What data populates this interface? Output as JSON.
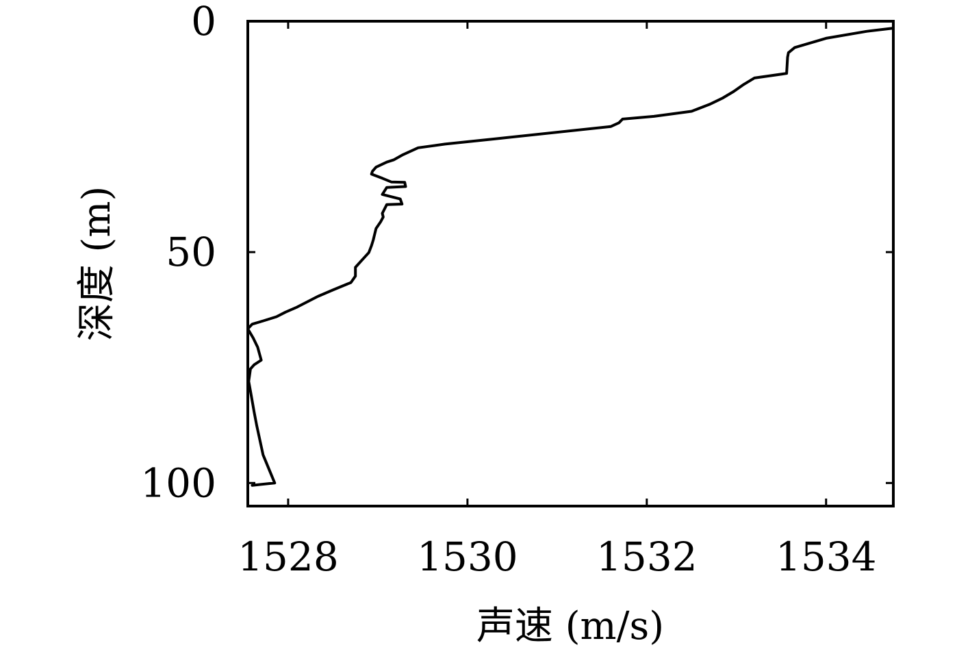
{
  "chart_data": {
    "type": "line",
    "title": "",
    "xlabel": "声速 (m/s)",
    "ylabel": "深度 (m)",
    "xlim": [
      1527.55,
      1534.75
    ],
    "ylim": [
      0,
      105
    ],
    "y_inverted": true,
    "x_ticks": [
      1528,
      1530,
      1532,
      1534
    ],
    "x_tick_labels": [
      "1528",
      "1530",
      "1532",
      "1534"
    ],
    "y_ticks": [
      0,
      50,
      100
    ],
    "y_tick_labels": [
      "0",
      "50",
      "100"
    ],
    "grid": false,
    "legend": "none",
    "line_color": "#000000",
    "series": [
      {
        "x": [
          1534.75,
          1534.45,
          1534.0,
          1533.65,
          1533.58,
          1533.57,
          1533.56,
          1533.2,
          1533.08,
          1532.97,
          1532.85,
          1532.7,
          1532.5,
          1532.08,
          1531.73,
          1531.69,
          1531.6,
          1530.3,
          1529.75,
          1529.45,
          1529.28,
          1529.18,
          1529.1,
          1528.98,
          1528.94,
          1528.93,
          1529.05,
          1529.15,
          1529.3,
          1529.31,
          1529.1,
          1529.05,
          1529.25,
          1529.27,
          1529.1,
          1529.05,
          1529.06,
          1529.03,
          1528.98,
          1528.95,
          1528.93,
          1528.9,
          1528.82,
          1528.75,
          1528.75,
          1528.7,
          1528.5,
          1528.33,
          1528.1,
          1527.97,
          1527.87,
          1527.72,
          1527.6,
          1527.55,
          1527.61,
          1527.66,
          1527.7,
          1527.62,
          1527.58,
          1527.56,
          1527.58,
          1527.62,
          1527.65,
          1527.72,
          1527.85,
          1527.6
        ],
        "y": [
          1.5,
          2.2,
          3.7,
          5.7,
          6.8,
          7.8,
          11.3,
          12.3,
          13.7,
          15.2,
          16.6,
          18.0,
          19.5,
          20.6,
          21.2,
          22.0,
          22.8,
          25.5,
          26.6,
          27.4,
          28.9,
          30.0,
          30.5,
          31.6,
          32.5,
          33.1,
          34.0,
          34.8,
          34.9,
          35.8,
          36.0,
          37.5,
          38.5,
          39.6,
          39.7,
          41.6,
          42.4,
          43.5,
          44.9,
          47.3,
          48.6,
          50.1,
          51.8,
          53.3,
          55.2,
          56.6,
          58.2,
          59.6,
          61.9,
          63.0,
          64.0,
          64.9,
          65.6,
          66.6,
          68.6,
          70.6,
          73.4,
          74.4,
          75.3,
          78.0,
          80.1,
          84.6,
          87.6,
          93.9,
          100.0,
          100.5
        ]
      }
    ]
  }
}
